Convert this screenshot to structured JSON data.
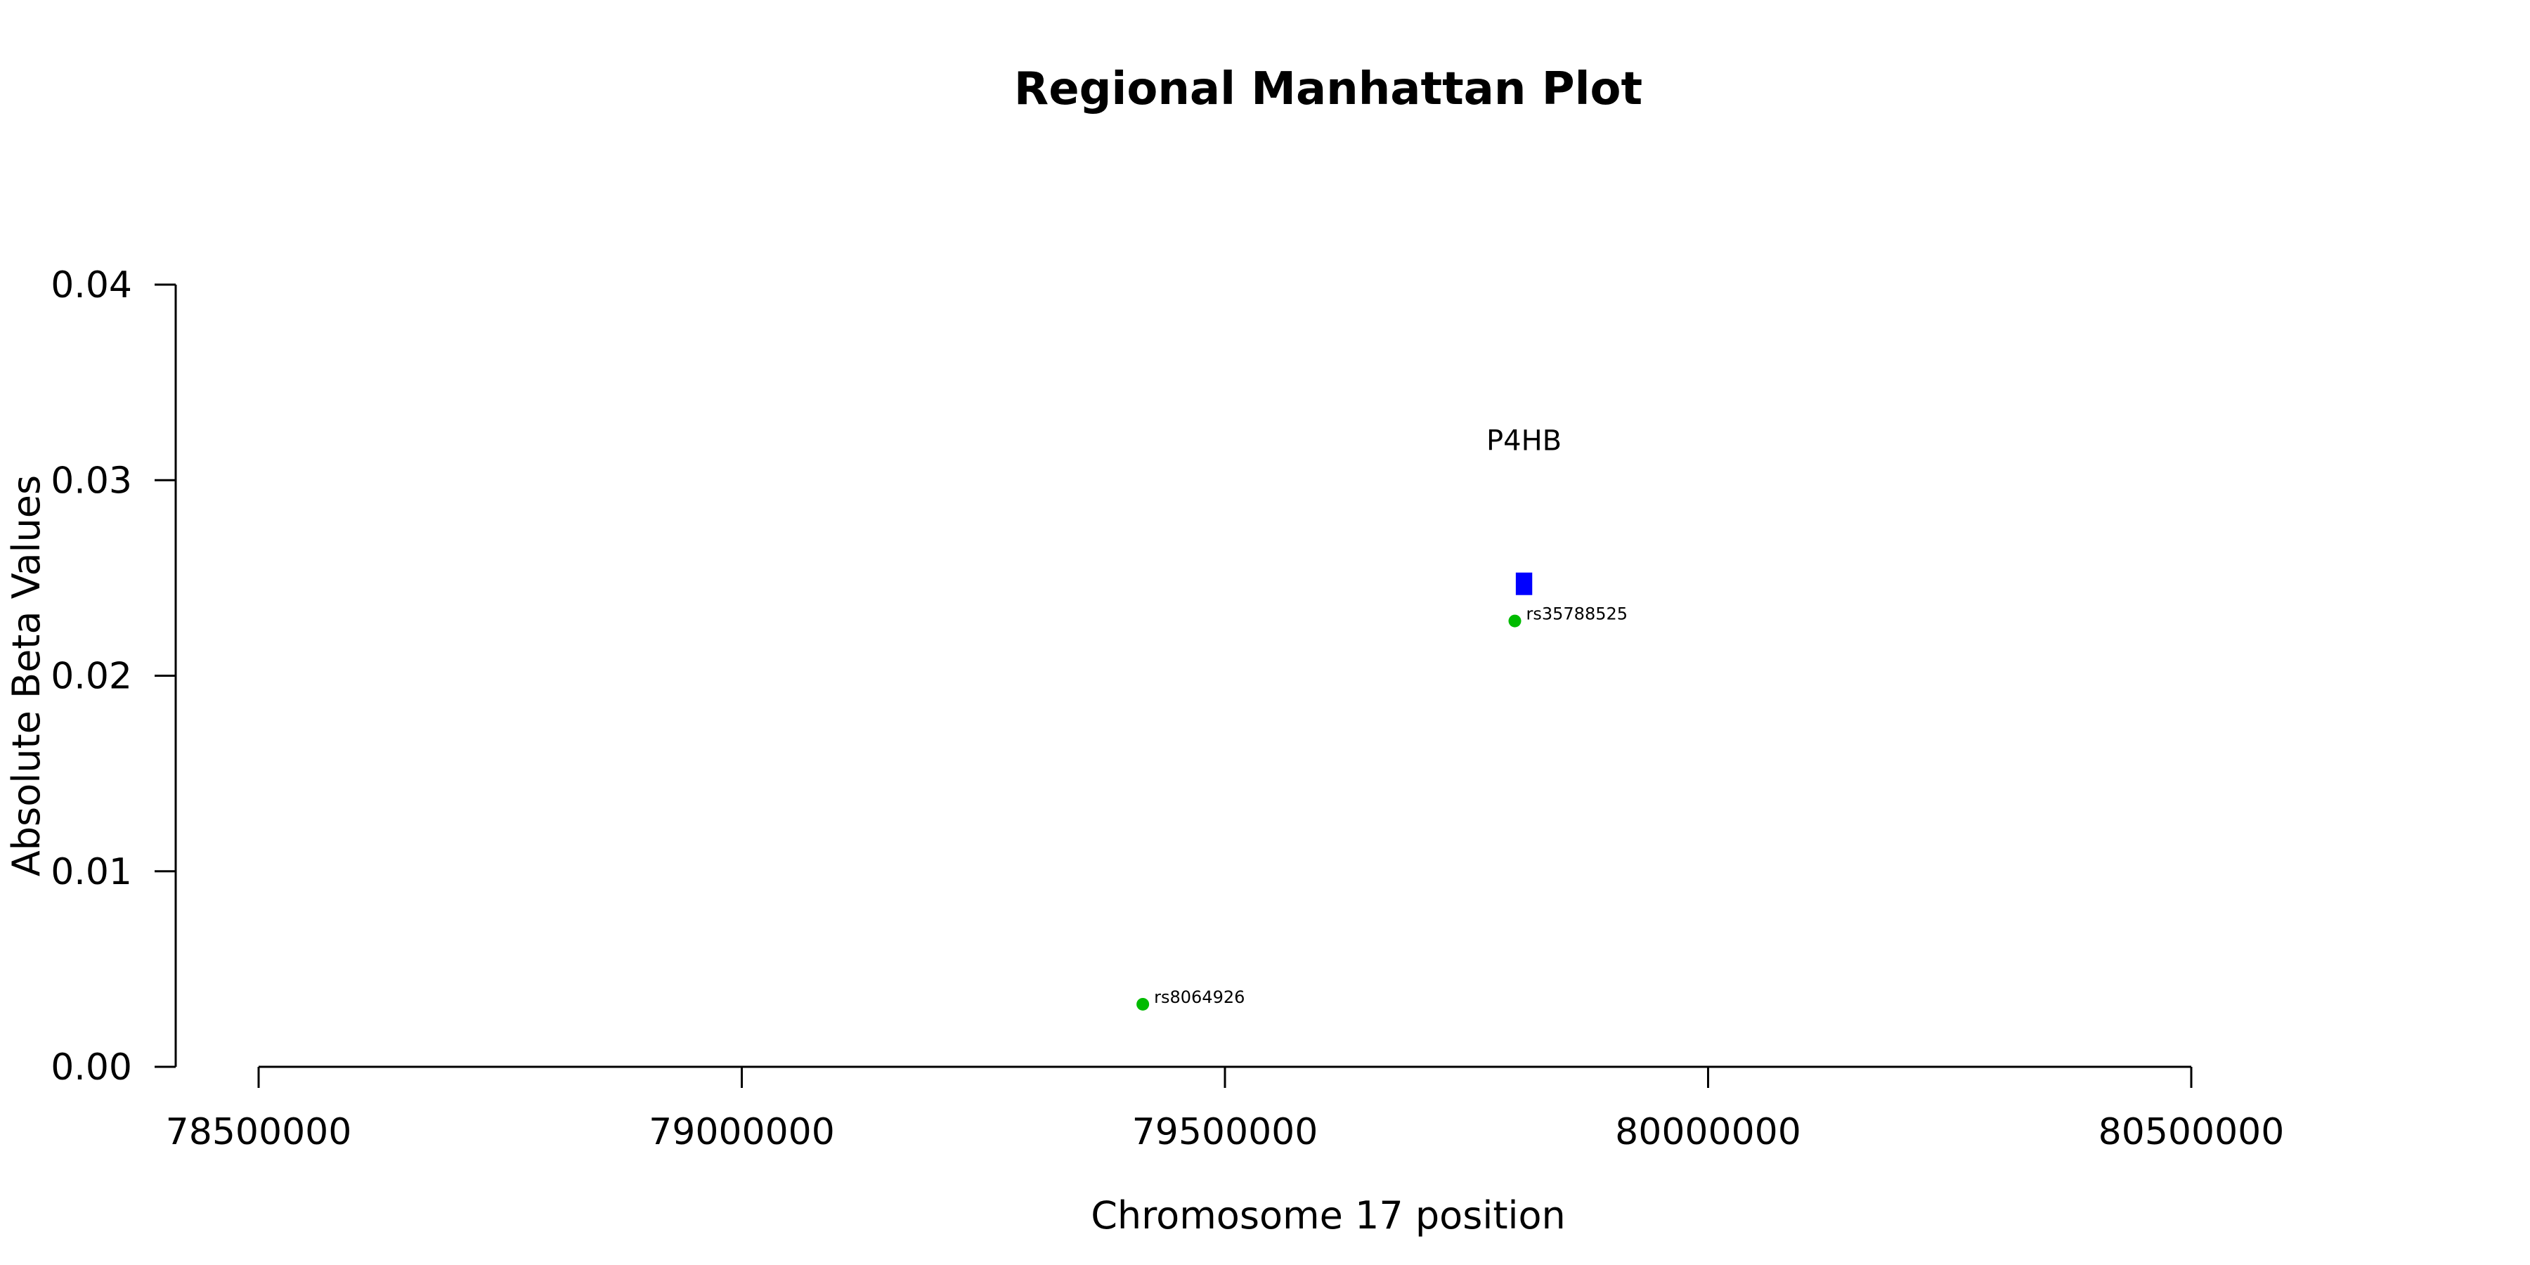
{
  "chart_data": {
    "type": "scatter",
    "title": "Regional Manhattan Plot",
    "xlabel": "Chromosome 17 position",
    "ylabel": "Absolute Beta Values",
    "xlim": [
      78500000,
      80500000
    ],
    "ylim": [
      0,
      0.04
    ],
    "x_ticks": [
      "78500000",
      "79000000",
      "79500000",
      "80000000",
      "80500000"
    ],
    "y_ticks": [
      "0.00",
      "0.01",
      "0.02",
      "0.03",
      "0.04"
    ],
    "grid": false,
    "points": [
      {
        "label": "rs8064926",
        "x": 79415000,
        "y": 0.0032,
        "color": "#00bb00"
      },
      {
        "label": "rs35788525",
        "x": 79800000,
        "y": 0.0228,
        "color": "#00bb00"
      }
    ],
    "genes": [
      {
        "name": "P4HB",
        "x_start": 79801000,
        "x_end": 79818000,
        "y": 0.0247,
        "color": "#0000ff"
      }
    ]
  }
}
